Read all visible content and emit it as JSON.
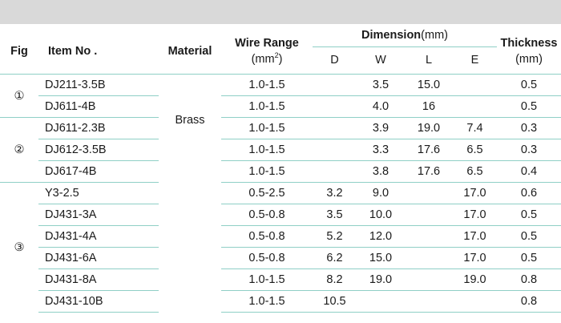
{
  "header": {
    "fig": "Fig",
    "item_no": "Item No .",
    "material": "Material",
    "wire_range": "Wire Range",
    "wire_unit_prefix": "(mm",
    "wire_unit_sup": "2",
    "wire_unit_suffix": ")",
    "dimension": "Dimension",
    "dimension_unit": "(mm)",
    "thickness": "Thickness",
    "thickness_unit": "(mm)",
    "dim_cols": [
      "D",
      "W",
      "L",
      "E"
    ]
  },
  "material_value": "Brass",
  "groups": [
    {
      "fig": "①",
      "rows": [
        {
          "item": "DJ211-3.5B",
          "wire": "1.0-1.5",
          "d": "",
          "w": "3.5",
          "l": "15.0",
          "e": "",
          "t": "0.5"
        },
        {
          "item": "DJ611-4B",
          "wire": "1.0-1.5",
          "d": "",
          "w": "4.0",
          "l": "16",
          "e": "",
          "t": "0.5"
        }
      ]
    },
    {
      "fig": "②",
      "rows": [
        {
          "item": "DJ611-2.3B",
          "wire": "1.0-1.5",
          "d": "",
          "w": "3.9",
          "l": "19.0",
          "e": "7.4",
          "t": "0.3"
        },
        {
          "item": "DJ612-3.5B",
          "wire": "1.0-1.5",
          "d": "",
          "w": "3.3",
          "l": "17.6",
          "e": "6.5",
          "t": "0.3"
        },
        {
          "item": "DJ617-4B",
          "wire": "1.0-1.5",
          "d": "",
          "w": "3.8",
          "l": "17.6",
          "e": "6.5",
          "t": "0.4"
        }
      ]
    },
    {
      "fig": "③",
      "rows": [
        {
          "item": "Y3-2.5",
          "wire": "0.5-2.5",
          "d": "3.2",
          "w": "9.0",
          "l": "",
          "e": "17.0",
          "t": "0.6"
        },
        {
          "item": "DJ431-3A",
          "wire": "0.5-0.8",
          "d": "3.5",
          "w": "10.0",
          "l": "",
          "e": "17.0",
          "t": "0.5"
        },
        {
          "item": "DJ431-4A",
          "wire": "0.5-0.8",
          "d": "5.2",
          "w": "12.0",
          "l": "",
          "e": "17.0",
          "t": "0.5"
        },
        {
          "item": "DJ431-6A",
          "wire": "0.5-0.8",
          "d": "6.2",
          "w": "15.0",
          "l": "",
          "e": "17.0",
          "t": "0.5"
        },
        {
          "item": "DJ431-8A",
          "wire": "1.0-1.5",
          "d": "8.2",
          "w": "19.0",
          "l": "",
          "e": "19.0",
          "t": "0.8"
        },
        {
          "item": "DJ431-10B",
          "wire": "1.0-1.5",
          "d": "10.5",
          "w": "",
          "l": "",
          "e": "",
          "t": "0.8"
        }
      ]
    }
  ]
}
